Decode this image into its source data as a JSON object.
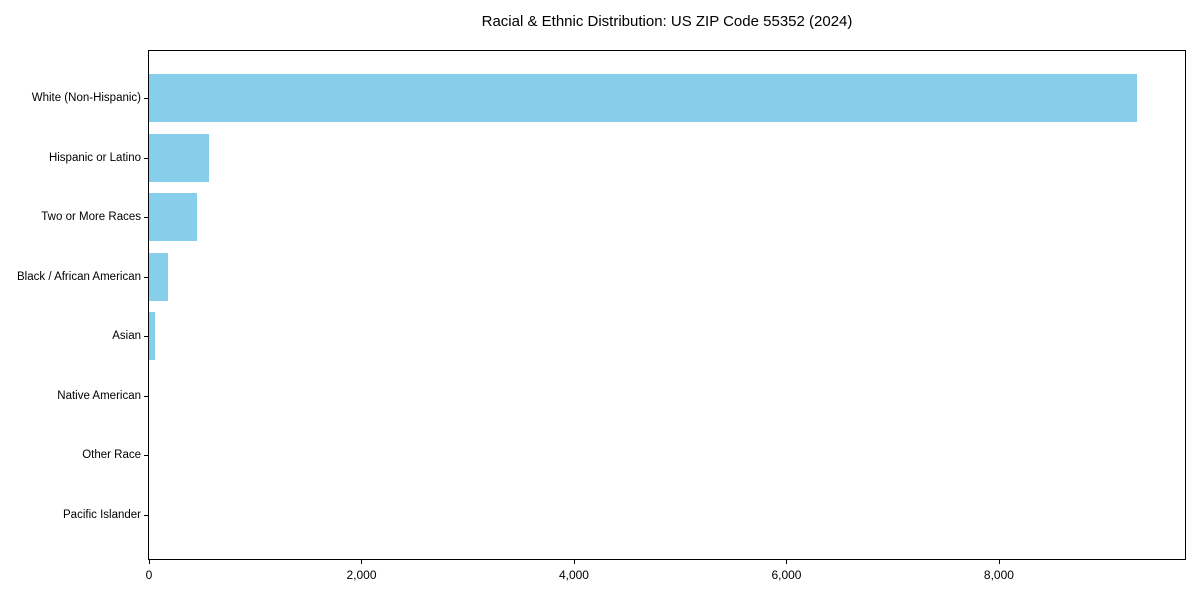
{
  "title": "Racial & Ethnic Distribution: US ZIP Code 55352 (2024)",
  "colors": {
    "bar": "#87CEEB",
    "axis": "#000000",
    "text": "#000000",
    "background": "#ffffff"
  },
  "chart_data": {
    "type": "bar",
    "orientation": "horizontal",
    "title": "Racial & Ethnic Distribution: US ZIP Code 55352 (2024)",
    "categories": [
      "White (Non-Hispanic)",
      "Hispanic or Latino",
      "Two or More Races",
      "Black / African American",
      "Asian",
      "Native American",
      "Other Race",
      "Pacific Islander"
    ],
    "values": [
      9300,
      565,
      450,
      180,
      55,
      0,
      0,
      0
    ],
    "xlabel": "",
    "ylabel": "",
    "xlim": [
      0,
      9770
    ],
    "xticks": [
      0,
      2000,
      4000,
      6000,
      8000
    ],
    "xtick_labels": [
      "0",
      "2,000",
      "4,000",
      "6,000",
      "8,000"
    ],
    "bar_color": "#87CEEB",
    "grid": false,
    "legend": null
  }
}
